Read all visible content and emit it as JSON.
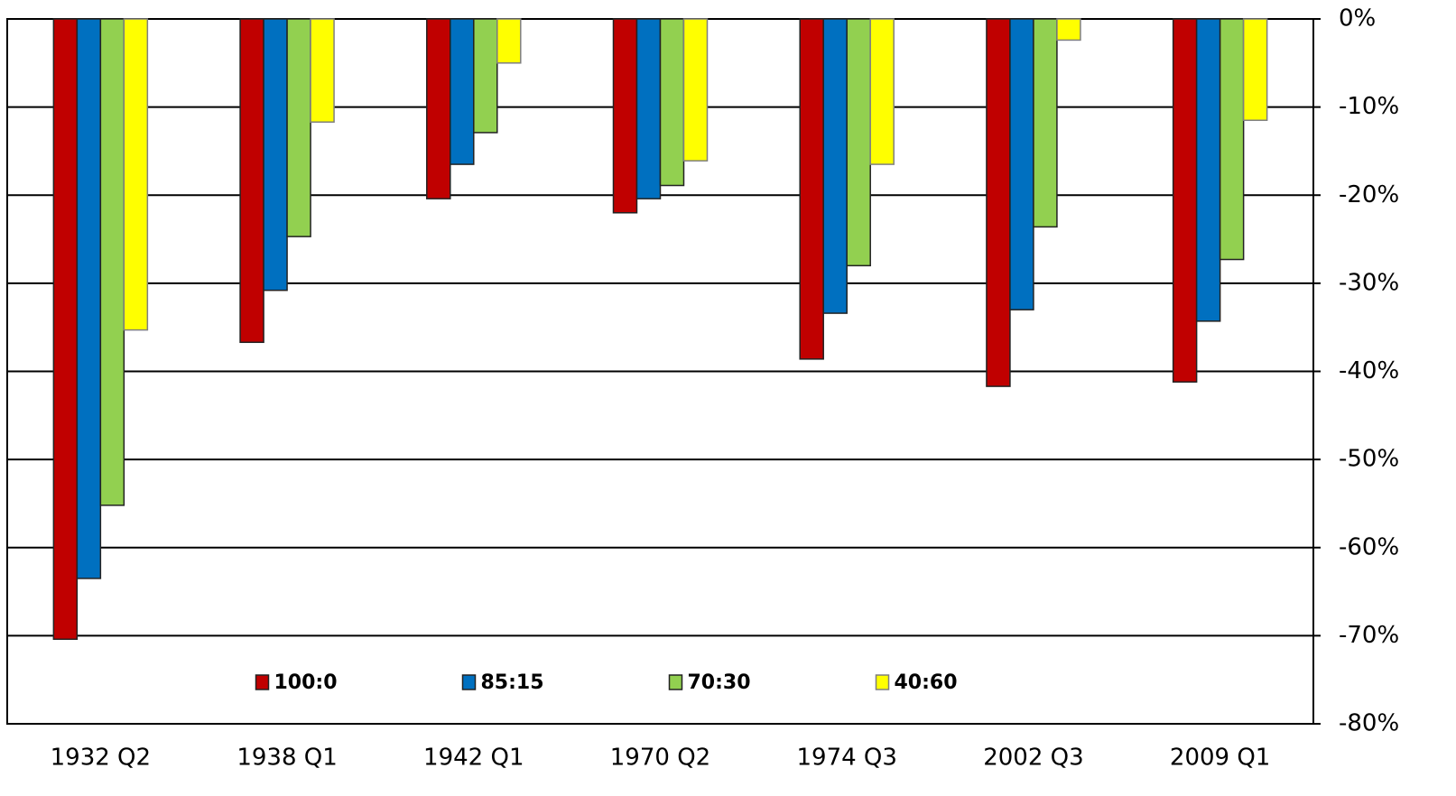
{
  "chart_data": {
    "type": "bar",
    "categories": [
      "1932 Q2",
      "1938 Q1",
      "1942 Q1",
      "1970 Q2",
      "1974 Q3",
      "2002 Q3",
      "2009 Q1"
    ],
    "series": [
      {
        "name": "100:0",
        "color": "#c00000",
        "values": [
          -70.4,
          -36.7,
          -20.4,
          -22.0,
          -38.6,
          -41.7,
          -41.2
        ]
      },
      {
        "name": "85:15",
        "color": "#0070c0",
        "values": [
          -63.5,
          -30.8,
          -16.5,
          -20.4,
          -33.4,
          -33.0,
          -34.3
        ]
      },
      {
        "name": "70:30",
        "color": "#92d050",
        "values": [
          -55.2,
          -24.7,
          -12.9,
          -18.9,
          -28.0,
          -23.6,
          -27.3
        ]
      },
      {
        "name": "40:60",
        "color": "#ffff00",
        "values": [
          -35.3,
          -11.7,
          -5.0,
          -16.1,
          -16.5,
          -2.4,
          -11.5
        ]
      }
    ],
    "ylim": [
      -80,
      0
    ],
    "yticks": [
      {
        "value": 0,
        "label": "0%"
      },
      {
        "value": -10,
        "label": "-10%"
      },
      {
        "value": -20,
        "label": "-20%"
      },
      {
        "value": -30,
        "label": "-30%"
      },
      {
        "value": -40,
        "label": "-40%"
      },
      {
        "value": -50,
        "label": "-50%"
      },
      {
        "value": -60,
        "label": "-60%"
      },
      {
        "value": -70,
        "label": "-70%"
      },
      {
        "value": -80,
        "label": "-80%"
      }
    ],
    "grid": true,
    "legend": "bottom"
  }
}
